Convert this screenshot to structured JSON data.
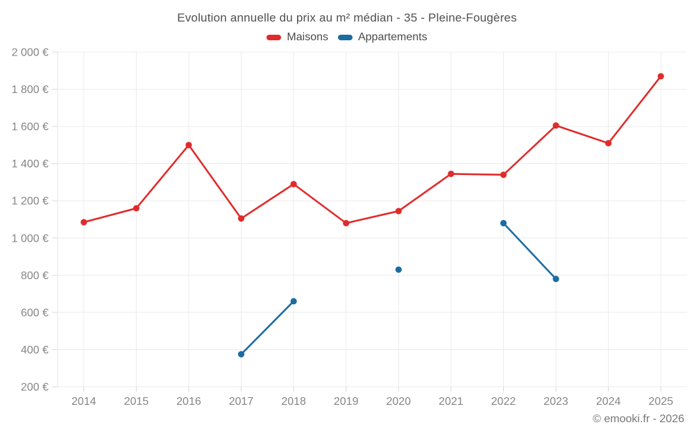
{
  "title": "Evolution annuelle du prix au m² médian - 35 - Pleine-Fougères",
  "footer": "© emooki.fr - 2026",
  "legend": [
    {
      "label": "Maisons",
      "color": "#e02b2b"
    },
    {
      "label": "Appartements",
      "color": "#1b6ca3"
    }
  ],
  "colors": {
    "grid": "#ececec",
    "axis_boundary": "#e3e3e3",
    "tick_mark": "#d9d9d9",
    "axis_label": "#858585",
    "title_text": "#4f4f4f",
    "footer_text": "#757575"
  },
  "chart_data": {
    "type": "line",
    "title": "Evolution annuelle du prix au m² médian - 35 - Pleine-Fougères",
    "x": [
      2014,
      2015,
      2016,
      2017,
      2018,
      2019,
      2020,
      2021,
      2022,
      2023,
      2024,
      2025
    ],
    "series": [
      {
        "name": "Maisons",
        "color": "#e02b2b",
        "values": [
          1085,
          1160,
          1500,
          1105,
          1290,
          1080,
          1145,
          1345,
          1340,
          1605,
          1510,
          1870
        ]
      },
      {
        "name": "Appartements",
        "color": "#1b6ca3",
        "values": [
          null,
          null,
          null,
          375,
          660,
          null,
          830,
          null,
          1080,
          780,
          null,
          null
        ]
      }
    ],
    "ylim": [
      200,
      2000
    ],
    "ytick_values": [
      200,
      400,
      600,
      800,
      1000,
      1200,
      1400,
      1600,
      1800,
      2000
    ],
    "ytick_labels": [
      "200 €",
      "400 €",
      "600 €",
      "800 €",
      "1 000 €",
      "1 200 €",
      "1 400 €",
      "1 600 €",
      "1 800 €",
      "2 000 €"
    ],
    "grid": true,
    "legend_position": "top",
    "unit": "€/m²"
  }
}
